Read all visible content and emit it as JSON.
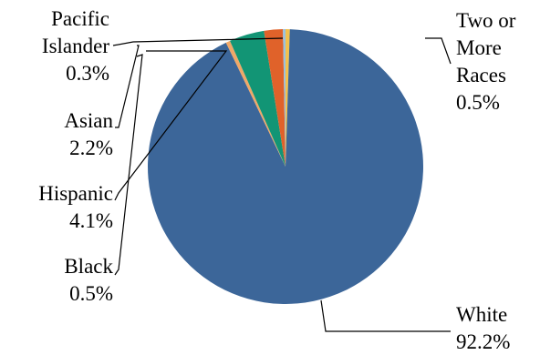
{
  "chart_data": {
    "type": "pie",
    "title": "",
    "categories": [
      "Two or More Races",
      "White",
      "Black",
      "Hispanic",
      "Asian",
      "Pacific Islander"
    ],
    "values": [
      0.5,
      92.2,
      0.5,
      4.1,
      2.2,
      0.3
    ],
    "colors": [
      "#f2c14e",
      "#3c6699",
      "#f0a868",
      "#129575",
      "#e0622a",
      "#9ac1e0"
    ],
    "slices": [
      {
        "key": "two_or_more",
        "label_lines": [
          "Two or",
          "More",
          "Races"
        ],
        "value_text": "0.5%"
      },
      {
        "key": "white",
        "label_lines": [
          "White"
        ],
        "value_text": "92.2%"
      },
      {
        "key": "black",
        "label_lines": [
          "Black"
        ],
        "value_text": "0.5%"
      },
      {
        "key": "hispanic",
        "label_lines": [
          "Hispanic"
        ],
        "value_text": "4.1%"
      },
      {
        "key": "asian",
        "label_lines": [
          "Asian"
        ],
        "value_text": "2.2%"
      },
      {
        "key": "pacific_islander",
        "label_lines": [
          "Pacific",
          "Islander"
        ],
        "value_text": "0.3%"
      }
    ],
    "legend": "none"
  }
}
